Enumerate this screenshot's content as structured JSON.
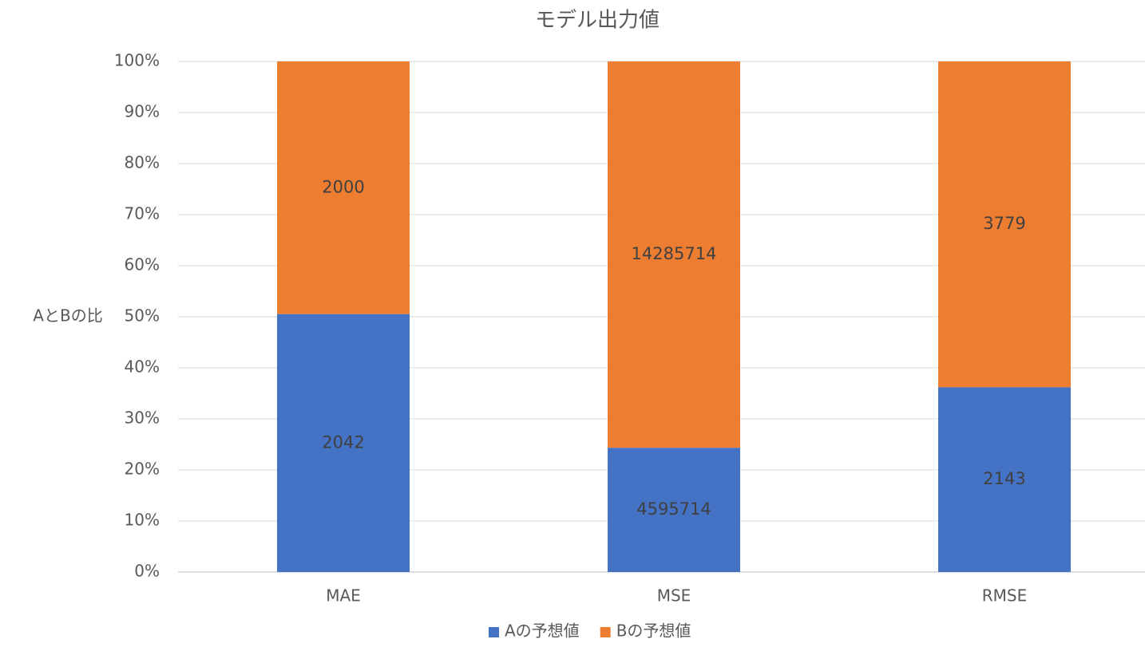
{
  "chart_data": {
    "type": "bar",
    "stacking": "percent",
    "title": "モデル出力値",
    "y_label": "AとBの比",
    "categories": [
      "MAE",
      "MSE",
      "RMSE"
    ],
    "series": [
      {
        "name": "Aの予想値",
        "color": "#4472c4",
        "values": [
          2042,
          4595714,
          2143
        ]
      },
      {
        "name": "Bの予想値",
        "color": "#ed7d31",
        "values": [
          2000,
          14285714,
          3779
        ]
      }
    ],
    "ylim": [
      0,
      100
    ],
    "yticks": [
      {
        "value": 0,
        "label": "0%"
      },
      {
        "value": 10,
        "label": "10%"
      },
      {
        "value": 20,
        "label": "20%"
      },
      {
        "value": 30,
        "label": "30%"
      },
      {
        "value": 40,
        "label": "40%"
      },
      {
        "value": 50,
        "label": "50%"
      },
      {
        "value": 60,
        "label": "60%"
      },
      {
        "value": 70,
        "label": "70%"
      },
      {
        "value": 80,
        "label": "80%"
      },
      {
        "value": 90,
        "label": "90%"
      },
      {
        "value": 100,
        "label": "100%"
      }
    ],
    "grid": true,
    "legend": "bottom"
  }
}
